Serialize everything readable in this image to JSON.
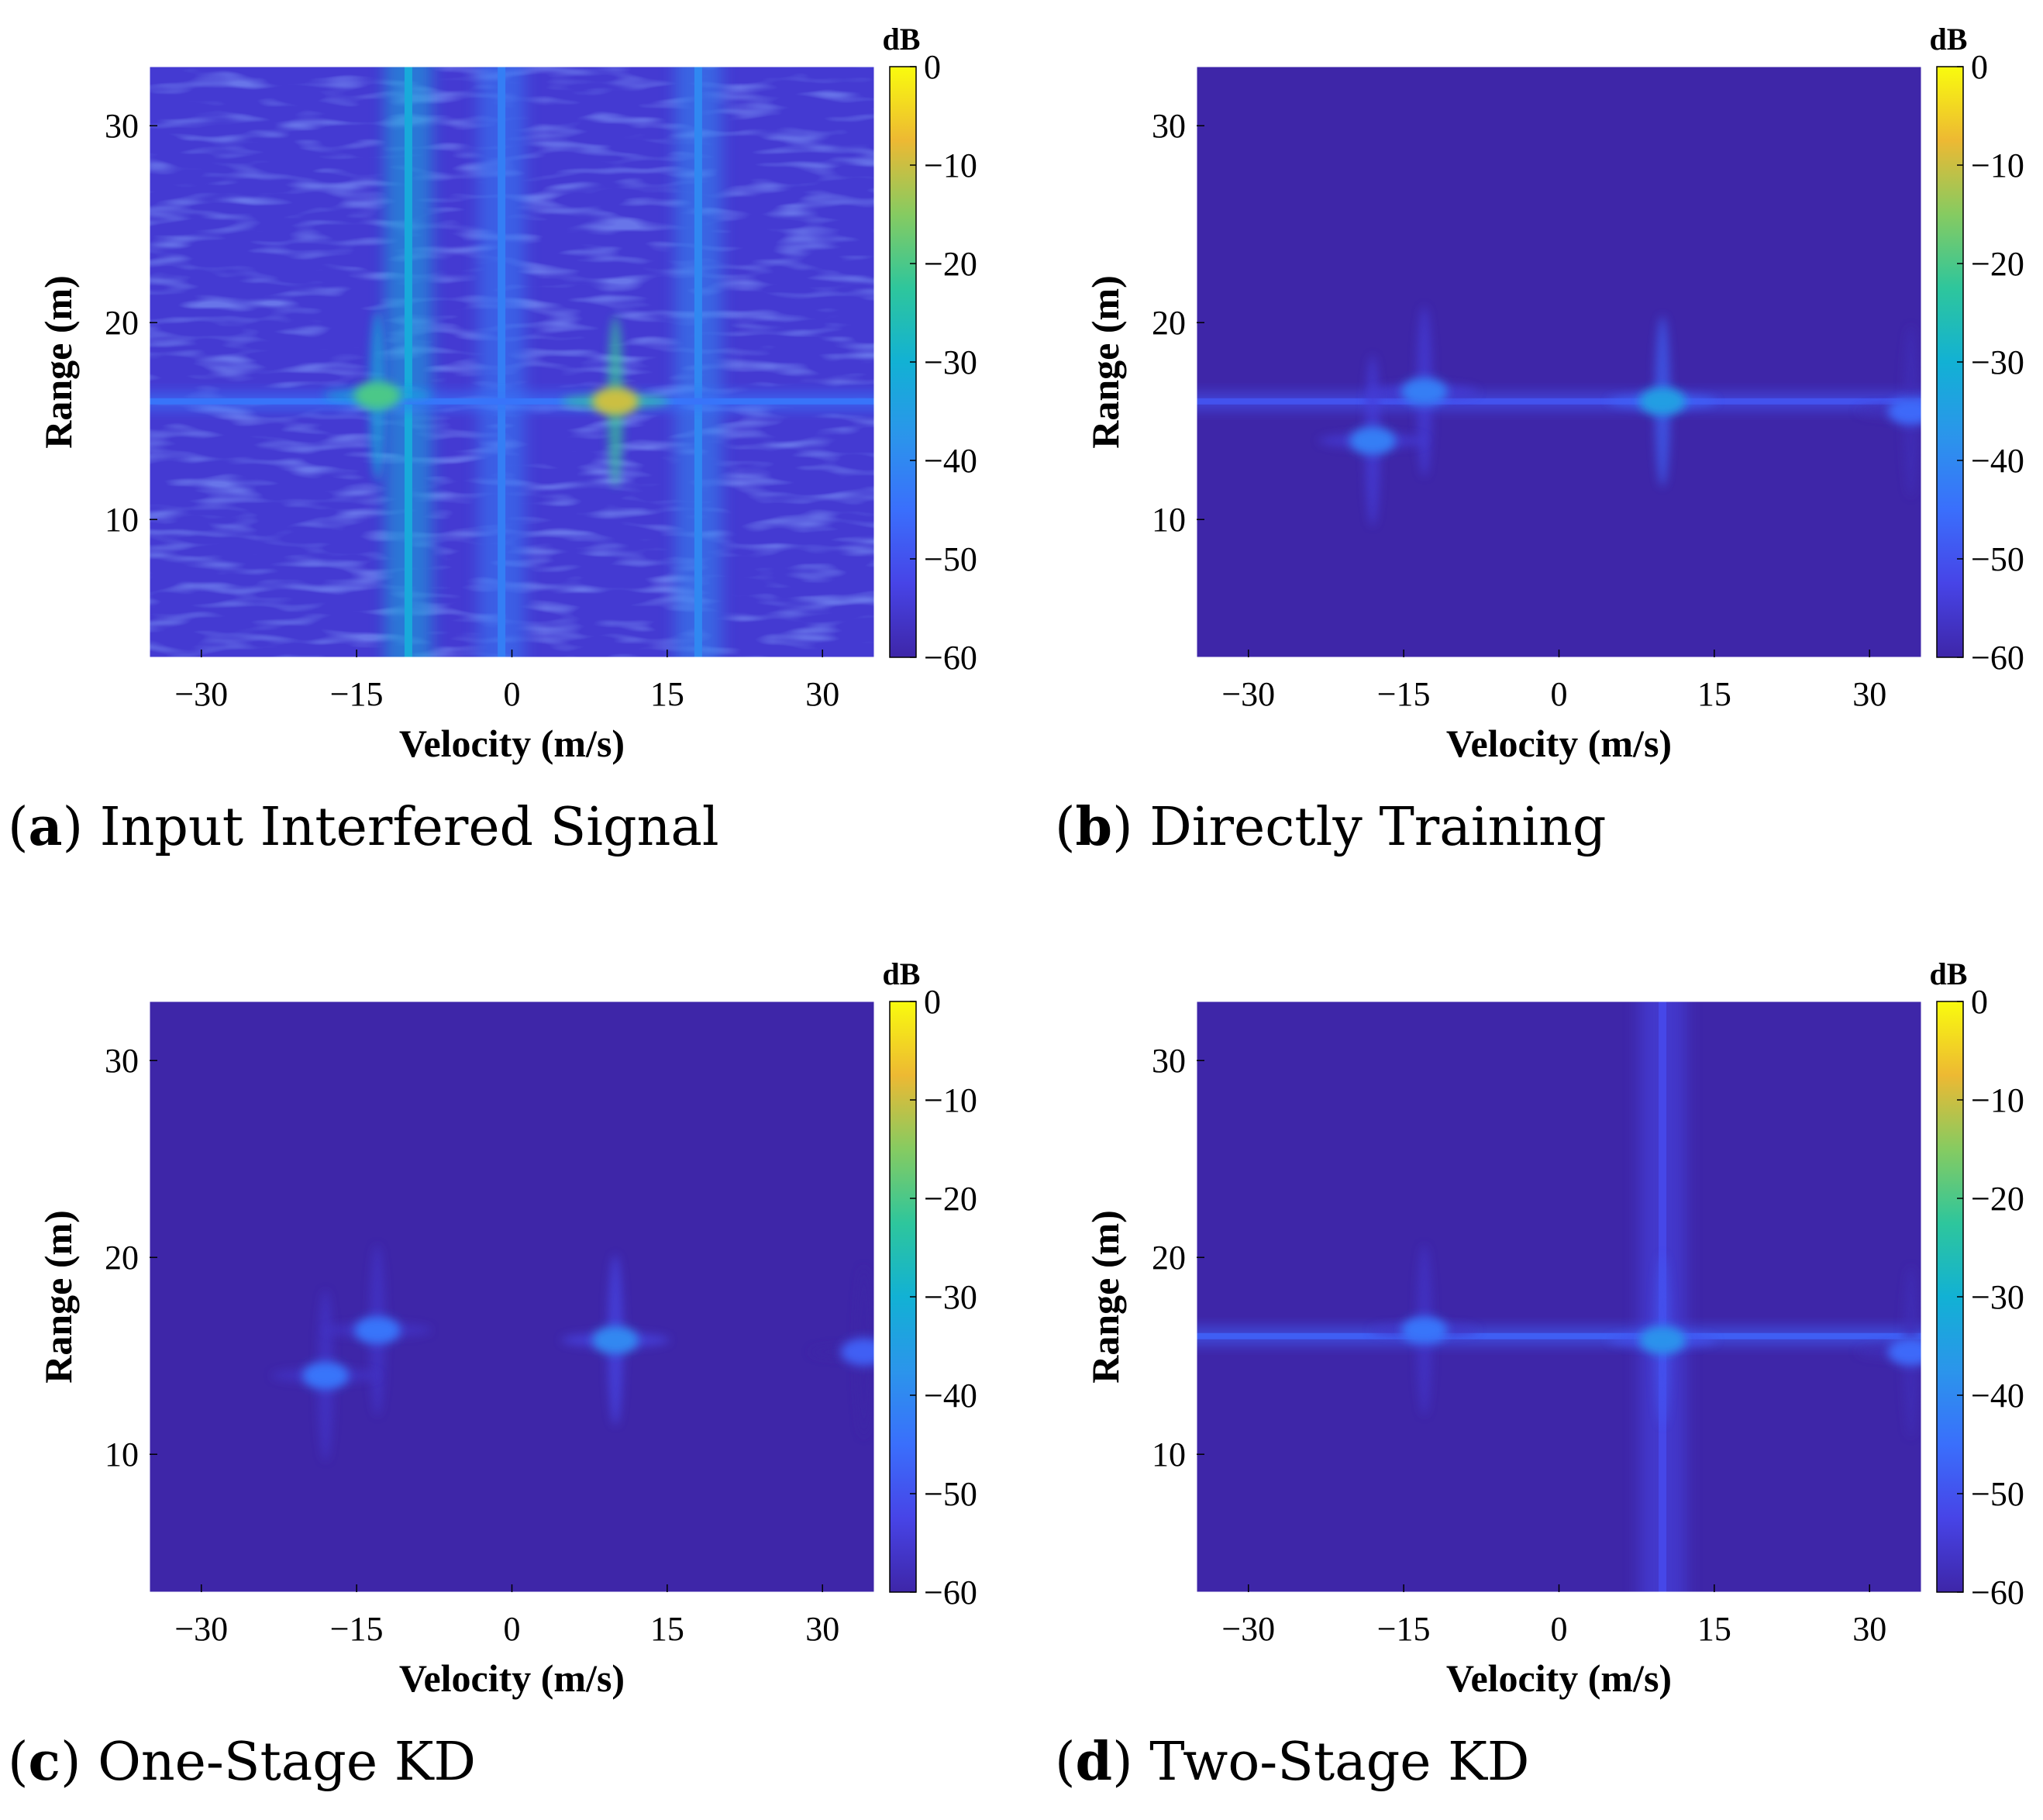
{
  "chart_data": [
    {
      "type": "heatmap",
      "panel": "a",
      "caption_letter": "a",
      "caption_text": "Input Interfered Signal",
      "xlabel": "Velocity (m/s)",
      "ylabel": "Range (m)",
      "xlim": [
        -35,
        35
      ],
      "ylim": [
        3,
        33
      ],
      "xticks": [
        -30,
        -15,
        0,
        15,
        30
      ],
      "yticks": [
        10,
        20,
        30
      ],
      "xtick_labels": [
        "−30",
        "−15",
        "0",
        "15",
        "30"
      ],
      "ytick_labels": [
        "10",
        "20",
        "30"
      ],
      "colorbar": {
        "label": "dB",
        "range": [
          -60,
          0
        ],
        "ticks": [
          0,
          -10,
          -20,
          -30,
          -40,
          -50,
          -60
        ],
        "tick_labels": [
          "0",
          "−10",
          "−20",
          "−30",
          "−40",
          "−50",
          "−60"
        ]
      },
      "background_db": -55,
      "features": [
        {
          "kind": "vline",
          "velocity": -10,
          "db": -32
        },
        {
          "kind": "vline",
          "velocity": -1,
          "db": -42
        },
        {
          "kind": "vline",
          "velocity": 18,
          "db": -40
        },
        {
          "kind": "hline",
          "range": 16,
          "db": -44
        },
        {
          "kind": "peak",
          "velocity": 10,
          "range": 16,
          "db": -10
        },
        {
          "kind": "peak",
          "velocity": -13,
          "range": 16.3,
          "db": -20
        }
      ]
    },
    {
      "type": "heatmap",
      "panel": "b",
      "caption_letter": "b",
      "caption_text": "Directly Training",
      "xlabel": "Velocity (m/s)",
      "ylabel": "Range (m)",
      "xlim": [
        -35,
        35
      ],
      "ylim": [
        3,
        33
      ],
      "xticks": [
        -30,
        -15,
        0,
        15,
        30
      ],
      "yticks": [
        10,
        20,
        30
      ],
      "xtick_labels": [
        "−30",
        "−15",
        "0",
        "15",
        "30"
      ],
      "ytick_labels": [
        "10",
        "20",
        "30"
      ],
      "colorbar": {
        "label": "dB",
        "range": [
          -60,
          0
        ],
        "ticks": [
          0,
          -10,
          -20,
          -30,
          -40,
          -50,
          -60
        ],
        "tick_labels": [
          "0",
          "−10",
          "−20",
          "−30",
          "−40",
          "−50",
          "−60"
        ]
      },
      "background_db": -60,
      "features": [
        {
          "kind": "hline",
          "range": 16,
          "db": -50
        },
        {
          "kind": "peak",
          "velocity": 10,
          "range": 16,
          "db": -35
        },
        {
          "kind": "peak",
          "velocity": -13,
          "range": 16.5,
          "db": -42
        },
        {
          "kind": "peak",
          "velocity": -18,
          "range": 14,
          "db": -42
        },
        {
          "kind": "peak",
          "velocity": 34,
          "range": 15.5,
          "db": -46
        }
      ]
    },
    {
      "type": "heatmap",
      "panel": "c",
      "caption_letter": "c",
      "caption_text": "One-Stage KD",
      "xlabel": "Velocity (m/s)",
      "ylabel": "Range (m)",
      "xlim": [
        -35,
        35
      ],
      "ylim": [
        3,
        33
      ],
      "xticks": [
        -30,
        -15,
        0,
        15,
        30
      ],
      "yticks": [
        10,
        20,
        30
      ],
      "xtick_labels": [
        "−30",
        "−15",
        "0",
        "15",
        "30"
      ],
      "ytick_labels": [
        "10",
        "20",
        "30"
      ],
      "colorbar": {
        "label": "dB",
        "range": [
          -60,
          0
        ],
        "ticks": [
          0,
          -10,
          -20,
          -30,
          -40,
          -50,
          -60
        ],
        "tick_labels": [
          "0",
          "−10",
          "−20",
          "−30",
          "−40",
          "−50",
          "−60"
        ]
      },
      "background_db": -60,
      "features": [
        {
          "kind": "peak",
          "velocity": 10,
          "range": 15.8,
          "db": -40
        },
        {
          "kind": "peak",
          "velocity": -13,
          "range": 16.3,
          "db": -44
        },
        {
          "kind": "peak",
          "velocity": -18,
          "range": 14,
          "db": -44
        },
        {
          "kind": "peak",
          "velocity": 34,
          "range": 15.2,
          "db": -48
        }
      ]
    },
    {
      "type": "heatmap",
      "panel": "d",
      "caption_letter": "d",
      "caption_text": "Two-Stage KD",
      "xlabel": "Velocity (m/s)",
      "ylabel": "Range (m)",
      "xlim": [
        -35,
        35
      ],
      "ylim": [
        3,
        33
      ],
      "xticks": [
        -30,
        -15,
        0,
        15,
        30
      ],
      "yticks": [
        10,
        20,
        30
      ],
      "xtick_labels": [
        "−30",
        "−15",
        "0",
        "15",
        "30"
      ],
      "ytick_labels": [
        "10",
        "20",
        "30"
      ],
      "colorbar": {
        "label": "dB",
        "range": [
          -60,
          0
        ],
        "ticks": [
          0,
          -10,
          -20,
          -30,
          -40,
          -50,
          -60
        ],
        "tick_labels": [
          "0",
          "−10",
          "−20",
          "−30",
          "−40",
          "−50",
          "−60"
        ]
      },
      "background_db": -60,
      "features": [
        {
          "kind": "hline",
          "range": 16,
          "db": -48
        },
        {
          "kind": "vline",
          "velocity": 10,
          "db": -52
        },
        {
          "kind": "peak",
          "velocity": 10,
          "range": 15.8,
          "db": -38
        },
        {
          "kind": "peak",
          "velocity": -13,
          "range": 16.3,
          "db": -44
        },
        {
          "kind": "peak",
          "velocity": 34,
          "range": 15.2,
          "db": -46
        }
      ]
    }
  ]
}
